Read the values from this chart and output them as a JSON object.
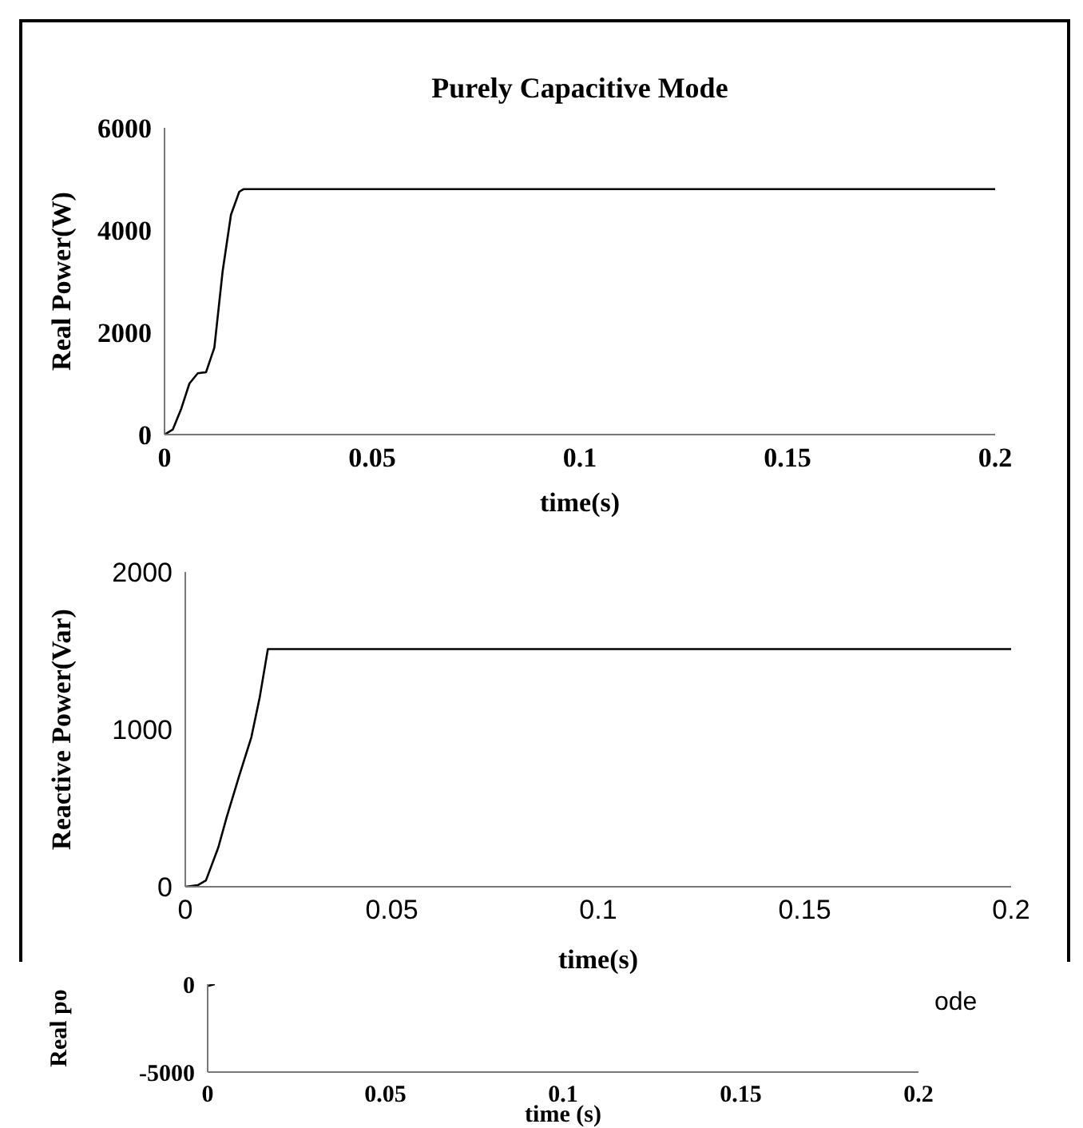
{
  "chart_data": [
    {
      "type": "line",
      "title": "Purely Capacitive Mode",
      "xlabel": "time(s)",
      "ylabel": "Real Power(W)",
      "xlim": [
        0,
        0.2
      ],
      "xticks": [
        0,
        0.05,
        0.1,
        0.15,
        0.2
      ],
      "ylim": [
        0,
        6000
      ],
      "yticks": [
        0,
        2000,
        4000,
        6000
      ],
      "grid": false,
      "legend": false,
      "marker": "none",
      "line_style": "solid",
      "series": [
        {
          "color": "#000000",
          "x": [
            0,
            0.002,
            0.004,
            0.006,
            0.008,
            0.01,
            0.012,
            0.014,
            0.016,
            0.018,
            0.019,
            0.2
          ],
          "values": [
            0,
            100,
            500,
            1000,
            1200,
            1220,
            1700,
            3200,
            4300,
            4750,
            4800,
            4800
          ]
        }
      ]
    },
    {
      "type": "line",
      "xlabel": "time(s)",
      "ylabel": "Reactive Power(Var)",
      "xlim": [
        0,
        0.2
      ],
      "xticks": [
        0,
        0.05,
        0.1,
        0.15,
        0.2
      ],
      "ylim": [
        0,
        2000
      ],
      "yticks": [
        0,
        1000,
        2000
      ],
      "grid": false,
      "legend": false,
      "marker": "none",
      "line_style": "solid",
      "series": [
        {
          "color": "#000000",
          "x": [
            0,
            0.003,
            0.005,
            0.008,
            0.01,
            0.013,
            0.016,
            0.018,
            0.02,
            0.2
          ],
          "values": [
            0,
            10,
            40,
            250,
            440,
            700,
            950,
            1200,
            1510,
            1510
          ]
        }
      ]
    },
    {
      "type": "line",
      "xlabel": "time (s)",
      "ylabel": "Real po",
      "annotations": [
        "ode"
      ],
      "xlim": [
        0,
        0.2
      ],
      "xticks": [
        0,
        0.05,
        0.1,
        0.15,
        0.2
      ],
      "ylim": [
        -5000,
        0
      ],
      "yticks": [
        -5000,
        0
      ],
      "grid": false,
      "legend": false,
      "marker": "none",
      "line_style": "solid",
      "series": [
        {
          "color": "#000000",
          "x": [
            0,
            0.002
          ],
          "values": [
            -100,
            0
          ]
        }
      ]
    }
  ]
}
